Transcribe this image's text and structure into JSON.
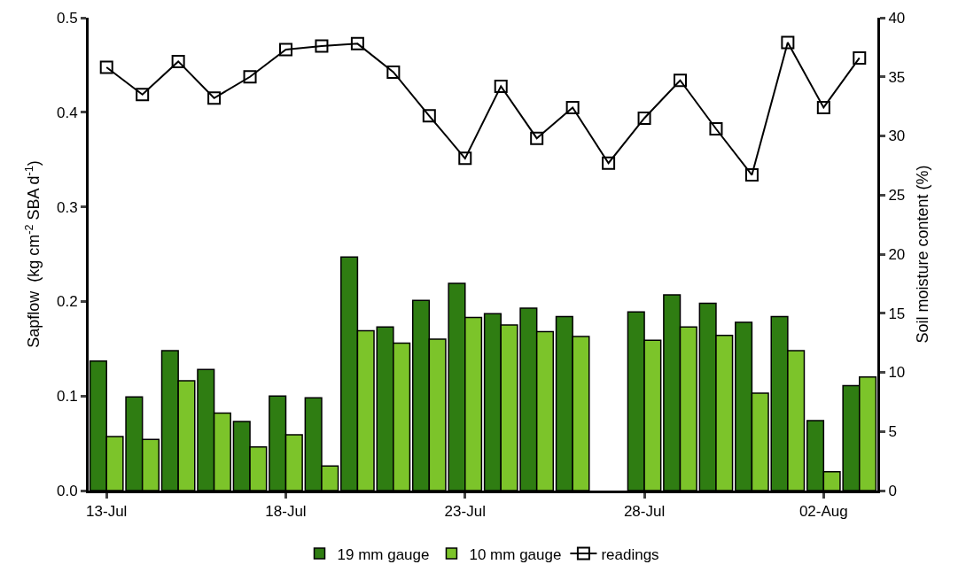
{
  "chart_data": {
    "type": "bar",
    "x": [
      "--07-13",
      "--07-14",
      "--07-15",
      "--07-16",
      "--07-17",
      "--07-18",
      "--07-19",
      "--07-20",
      "--07-21",
      "--07-22",
      "--07-23",
      "--07-24",
      "--07-25",
      "--07-26",
      "--07-27",
      "--07-28",
      "--07-29",
      "--07-30",
      "--07-31",
      "--08-01",
      "--08-02",
      "--08-03"
    ],
    "series": [
      {
        "name": "19 mm gauge",
        "color": "#2f7d12",
        "values": [
          0.137,
          0.099,
          0.148,
          0.128,
          0.073,
          0.1,
          0.098,
          0.247,
          0.173,
          0.201,
          0.219,
          0.187,
          0.193,
          0.184,
          null,
          0.189,
          0.207,
          0.198,
          0.178,
          0.184,
          0.074,
          0.111
        ]
      },
      {
        "name": "10 mm gauge",
        "color": "#7cc42a",
        "values": [
          0.057,
          0.054,
          0.116,
          0.082,
          0.046,
          0.059,
          0.026,
          0.169,
          0.156,
          0.16,
          0.183,
          0.175,
          0.168,
          0.163,
          null,
          0.159,
          0.173,
          0.164,
          0.103,
          0.148,
          0.02,
          0.12
        ]
      },
      {
        "name": "readings",
        "type": "line",
        "axis": "y2",
        "color": "#000000",
        "marker": "square",
        "line_style": "solid",
        "values": [
          35.8,
          33.5,
          36.3,
          33.2,
          35.0,
          37.3,
          37.6,
          37.8,
          35.4,
          31.7,
          28.1,
          34.2,
          29.8,
          32.4,
          27.7,
          31.5,
          34.7,
          30.6,
          26.7,
          37.9,
          32.4,
          36.6
        ]
      }
    ],
    "ylabel": "Sapflow  (kg cm$^{-2}$ SBA d$^{-1}$)",
    "y2label": "Soil moisture content (%)",
    "xlim": [
      "--07-12T12:00",
      "--08-03T12:00"
    ],
    "xticks": [
      {
        "value": "--07-13",
        "label": "13-Jul"
      },
      {
        "value": "--07-18",
        "label": "18-Jul"
      },
      {
        "value": "--07-23",
        "label": "23-Jul"
      },
      {
        "value": "--07-28",
        "label": "28-Jul"
      },
      {
        "value": "--08-02",
        "label": "02-Aug"
      }
    ],
    "ylim": [
      0,
      0.5
    ],
    "yticks": [
      {
        "value": 0,
        "label": "0.0"
      },
      0.1,
      0.2,
      0.3,
      0.4,
      0.5
    ],
    "y2lim": [
      0,
      40
    ],
    "y2ticks": [
      0,
      5,
      10,
      15,
      20,
      25,
      30,
      35,
      40
    ],
    "legend": "bottom"
  }
}
